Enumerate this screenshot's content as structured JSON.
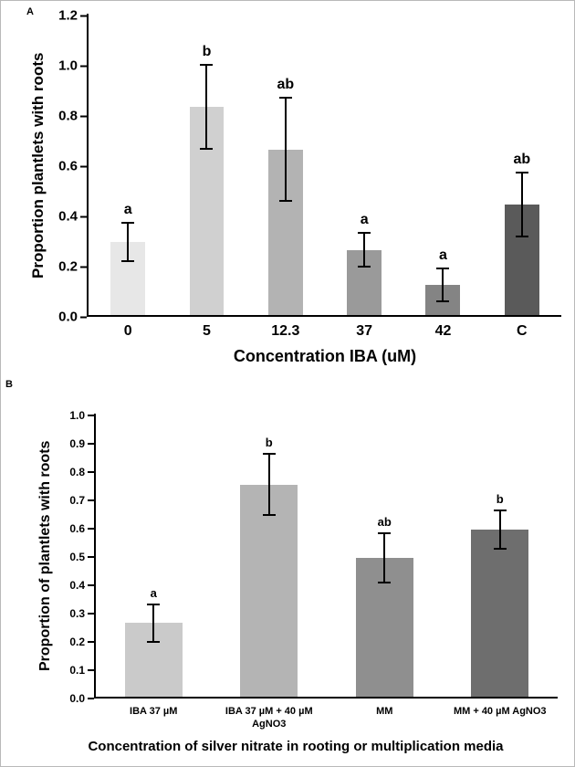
{
  "figure": {
    "panel_labels": {
      "a": "A",
      "b": "B"
    }
  },
  "chart_data": [
    {
      "type": "bar",
      "panel": "A",
      "title": "",
      "ylabel": "Proportion plantlets with roots",
      "xlabel": "Concentration IBA (uM)",
      "ylim": [
        0,
        1.2
      ],
      "ytick_step": 0.2,
      "ytick_labels": [
        "0.0",
        "0.2",
        "0.4",
        "0.6",
        "0.8",
        "1.0",
        "1.2"
      ],
      "categories": [
        "0",
        "5",
        "12.3",
        "37",
        "42",
        "C"
      ],
      "values": [
        0.29,
        0.83,
        0.66,
        0.26,
        0.12,
        0.44
      ],
      "errors": [
        0.08,
        0.17,
        0.21,
        0.07,
        0.07,
        0.13
      ],
      "sig_letters": [
        "a",
        "b",
        "ab",
        "a",
        "a",
        "ab"
      ],
      "bar_colors": [
        "#e7e7e7",
        "#d0d0d0",
        "#b3b3b3",
        "#9a9a9a",
        "#848484",
        "#5a5a5a"
      ],
      "grid": false,
      "legend": false
    },
    {
      "type": "bar",
      "panel": "B",
      "title": "",
      "ylabel": "Proportion of plantlets with roots",
      "xlabel": "Concentration of silver nitrate in rooting or multiplication media",
      "ylim": [
        0,
        1.0
      ],
      "ytick_step": 0.1,
      "ytick_labels": [
        "0.0",
        "0.1",
        "0.2",
        "0.3",
        "0.4",
        "0.5",
        "0.6",
        "0.7",
        "0.8",
        "0.9",
        "1.0"
      ],
      "categories": [
        "IBA 37 µM",
        "IBA 37 µM + 40 µM AgNO3",
        "MM",
        "MM + 40 µM AgNO3"
      ],
      "values": [
        0.26,
        0.75,
        0.49,
        0.59
      ],
      "errors": [
        0.07,
        0.11,
        0.09,
        0.07
      ],
      "sig_letters": [
        "a",
        "b",
        "ab",
        "b"
      ],
      "bar_colors": [
        "#cacaca",
        "#b4b4b4",
        "#8f8f8f",
        "#6e6e6e"
      ],
      "grid": false,
      "legend": false
    }
  ]
}
